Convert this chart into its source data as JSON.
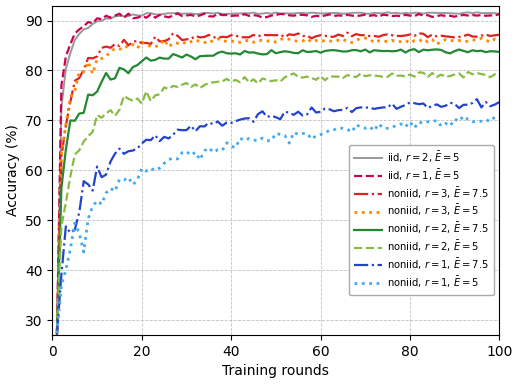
{
  "title": "",
  "xlabel": "Training rounds",
  "ylabel": "Accuracy (%)",
  "xlim": [
    0,
    100
  ],
  "ylim": [
    27,
    93
  ],
  "yticks": [
    30,
    40,
    50,
    60,
    70,
    80,
    90
  ],
  "xticks": [
    0,
    20,
    40,
    60,
    80,
    100
  ],
  "series": [
    {
      "label": "iid, $r=2$, $\\bar{E}=5$",
      "color": "#999999",
      "linestyle": "-",
      "linewidth": 1.4,
      "final": 91.5,
      "start": 28,
      "rise_speed": 1.2,
      "noise": 0.5,
      "seed": 1
    },
    {
      "label": "iid, $r=1$, $\\bar{E}=5$",
      "color": "#cc0055",
      "linestyle": "--",
      "linewidth": 1.6,
      "final": 91.0,
      "start": 28,
      "rise_speed": 1.4,
      "noise": 0.9,
      "seed": 2
    },
    {
      "label": "noniid, $r=3$, $\\bar{E}=7.5$",
      "color": "#dd2222",
      "linestyle": "-.",
      "linewidth": 1.6,
      "final": 87.0,
      "start": 28,
      "rise_speed": 0.9,
      "noise": 1.3,
      "seed": 3
    },
    {
      "label": "noniid, $r=3$, $\\bar{E}=5$",
      "color": "#ff8800",
      "linestyle": ":",
      "linewidth": 2.0,
      "final": 86.0,
      "start": 28,
      "rise_speed": 0.9,
      "noise": 1.6,
      "seed": 4
    },
    {
      "label": "noniid, $r=2$, $\\bar{E}=7.5$",
      "color": "#228833",
      "linestyle": "-",
      "linewidth": 1.6,
      "final": 84.0,
      "start": 28,
      "rise_speed": 0.7,
      "noise": 1.8,
      "seed": 5
    },
    {
      "label": "noniid, $r=2$, $\\bar{E}=5$",
      "color": "#88bb44",
      "linestyle": "--",
      "linewidth": 1.6,
      "final": 79.5,
      "start": 28,
      "rise_speed": 0.55,
      "noise": 2.2,
      "seed": 6
    },
    {
      "label": "noniid, $r=1$, $\\bar{E}=7.5$",
      "color": "#2244cc",
      "linestyle": "-.",
      "linewidth": 1.6,
      "final": 75.0,
      "start": 28,
      "rise_speed": 0.35,
      "noise": 2.8,
      "seed": 7
    },
    {
      "label": "noniid, $r=1$, $\\bar{E}=5$",
      "color": "#44aaee",
      "linestyle": ":",
      "linewidth": 2.0,
      "final": 73.0,
      "start": 28,
      "rise_speed": 0.28,
      "noise": 3.2,
      "seed": 8
    }
  ]
}
